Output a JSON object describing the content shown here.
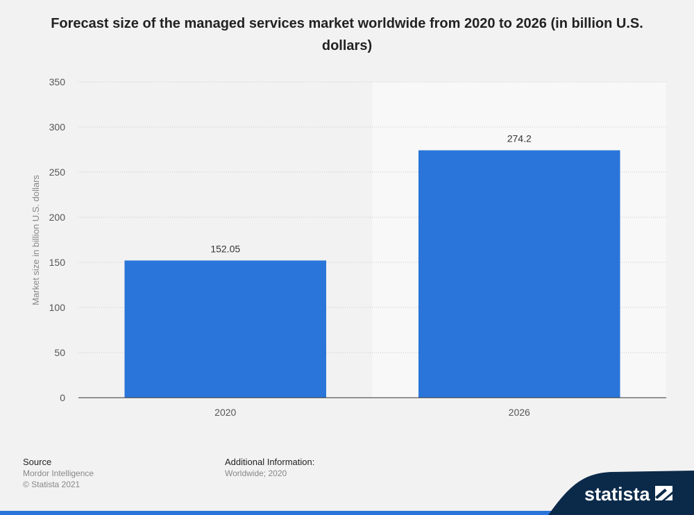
{
  "title": "Forecast size of the managed services market worldwide from 2020 to 2026 (in billion U.S. dollars)",
  "chart_data": {
    "type": "bar",
    "categories": [
      "2020",
      "2026"
    ],
    "values": [
      152.05,
      274.2
    ],
    "value_labels": [
      "152.05",
      "274.2"
    ],
    "xlabel": "",
    "ylabel": "Market size in billion U.S. dollars",
    "ylim": [
      0,
      350
    ],
    "yticks": [
      0,
      50,
      100,
      150,
      200,
      250,
      300,
      350
    ],
    "grid": true,
    "bar_color": "#2a75d9",
    "forecast_shading_color": "#f8f8f8"
  },
  "footer": {
    "source_heading": "Source",
    "source_name": "Mordor Intelligence",
    "copyright": "© Statista 2021",
    "additional_heading": "Additional Information:",
    "additional_text": "Worldwide; 2020"
  },
  "brand": {
    "name": "statista",
    "color": "#0b2a4a",
    "accent": "#2a75d9",
    "icon": "statista-logo-icon"
  }
}
